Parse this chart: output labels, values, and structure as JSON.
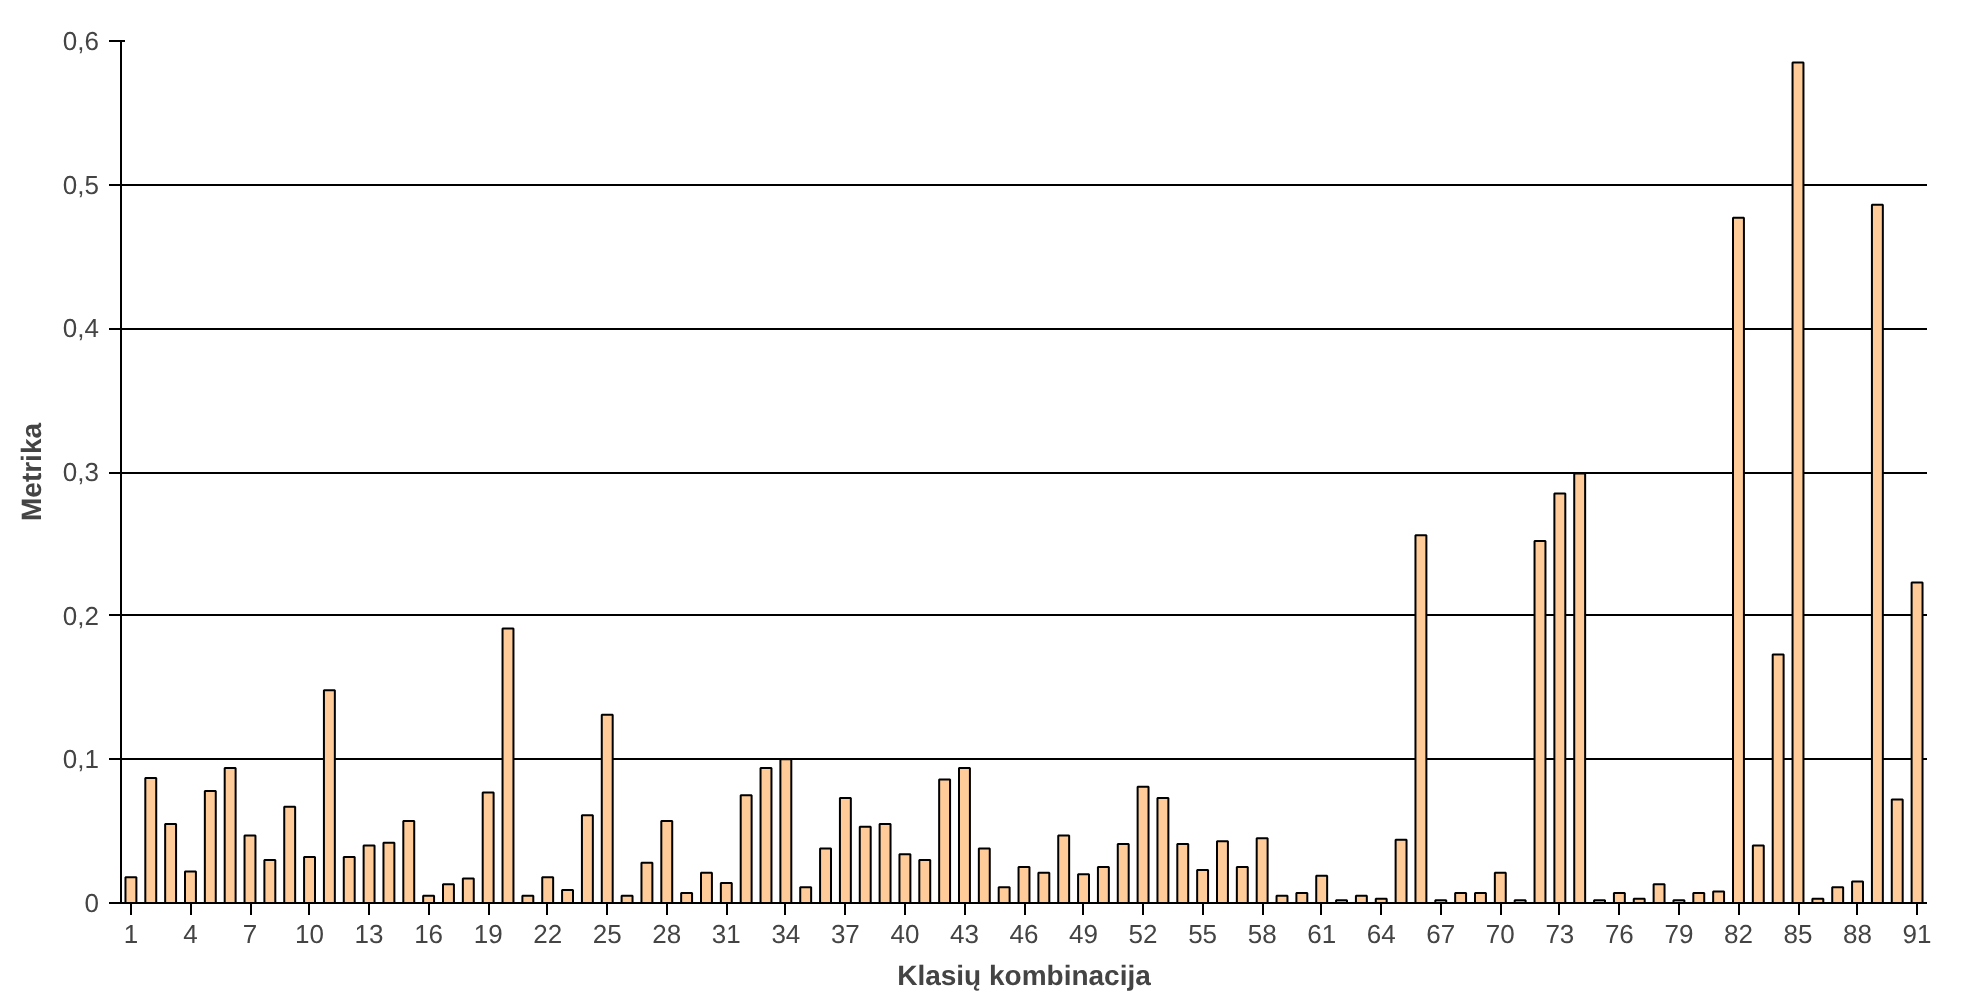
{
  "chart_data": {
    "type": "bar",
    "xlabel": "Klasių kombinacija",
    "ylabel": "Metrika",
    "categories": [
      "1",
      null,
      null,
      "4",
      null,
      null,
      "7",
      null,
      null,
      "10",
      null,
      null,
      "13",
      null,
      null,
      "16",
      null,
      null,
      "19",
      null,
      null,
      "22",
      null,
      null,
      "25",
      null,
      null,
      "28",
      null,
      null,
      "31",
      null,
      null,
      "34",
      null,
      null,
      "37",
      null,
      null,
      "40",
      null,
      null,
      "43",
      null,
      null,
      "46",
      null,
      null,
      "49",
      null,
      null,
      "52",
      null,
      null,
      "55",
      null,
      null,
      "58",
      null,
      null,
      "61",
      null,
      null,
      "64",
      null,
      null,
      "67",
      null,
      null,
      "70",
      null,
      null,
      "73",
      null,
      null,
      "76",
      null,
      null,
      "79",
      null,
      null,
      "82",
      null,
      null,
      "85",
      null,
      null,
      "88",
      null,
      null,
      "91"
    ],
    "values": [
      0.018,
      0.087,
      0.055,
      0.022,
      0.078,
      0.094,
      0.047,
      0.03,
      0.067,
      0.032,
      0.148,
      0.032,
      0.04,
      0.042,
      0.057,
      0.005,
      0.013,
      0.017,
      0.077,
      0.191,
      0.005,
      0.018,
      0.009,
      0.061,
      0.131,
      0.005,
      0.028,
      0.057,
      0.007,
      0.021,
      0.014,
      0.075,
      0.094,
      0.1,
      0.011,
      0.038,
      0.073,
      0.053,
      0.055,
      0.034,
      0.03,
      0.086,
      0.094,
      0.038,
      0.011,
      0.025,
      0.021,
      0.047,
      0.02,
      0.025,
      0.041,
      0.081,
      0.073,
      0.041,
      0.023,
      0.043,
      0.025,
      0.045,
      0.005,
      0.007,
      0.019,
      0.002,
      0.005,
      0.003,
      0.044,
      0.256,
      0.002,
      0.007,
      0.007,
      0.021,
      0.002,
      0.252,
      0.285,
      0.299,
      0.002,
      0.007,
      0.003,
      0.013,
      0.002,
      0.007,
      0.008,
      0.477,
      0.04,
      0.173,
      0.585,
      0.003,
      0.011,
      0.015,
      0.486,
      0.072,
      0.223
    ],
    "color": "#ffcc99",
    "ylim": [
      0,
      0.6
    ],
    "yticks": [
      {
        "value": 0,
        "label": "0"
      },
      {
        "value": 0.1,
        "label": "0,1"
      },
      {
        "value": 0.2,
        "label": "0,2"
      },
      {
        "value": 0.3,
        "label": "0,3"
      },
      {
        "value": 0.4,
        "label": "0,4"
      },
      {
        "value": 0.5,
        "label": "0,5"
      },
      {
        "value": 0.6,
        "label": "0,6"
      }
    ],
    "grid": "y"
  }
}
